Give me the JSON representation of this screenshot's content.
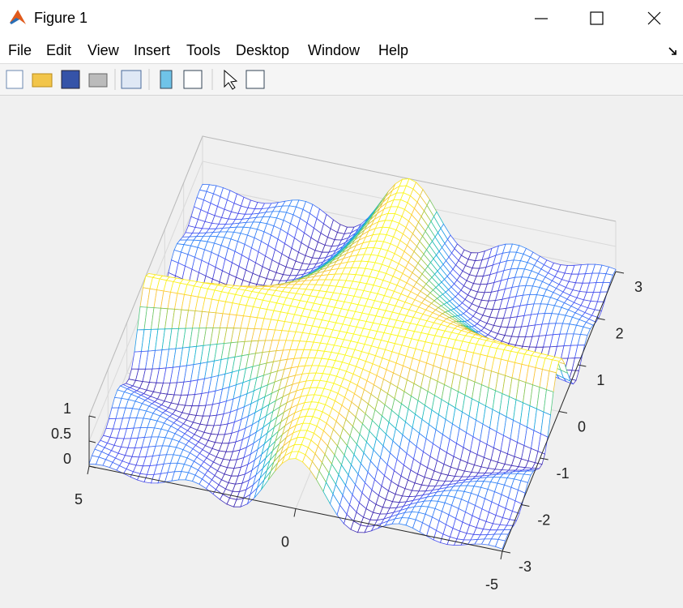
{
  "window": {
    "title": "Figure 1"
  },
  "menu": [
    "File",
    "Edit",
    "View",
    "Insert",
    "Tools",
    "Desktop",
    "Window",
    "Help"
  ],
  "chart_data": {
    "type": "mesh",
    "xlim": [
      -5,
      5
    ],
    "xticks": [
      5,
      0,
      -5
    ],
    "ylim": [
      -3,
      3
    ],
    "yticks": [
      3,
      2,
      1,
      0,
      -1,
      -2,
      -3
    ],
    "zlim": [
      0,
      1
    ],
    "zticks": [
      1,
      0.5,
      0
    ],
    "grid": true
  }
}
